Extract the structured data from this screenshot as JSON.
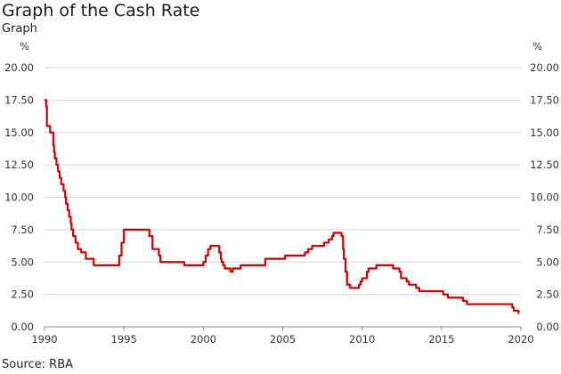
{
  "page": {
    "title": "Graph of the Cash Rate",
    "subtitle": "Graph",
    "source": "Source: RBA"
  },
  "chart_data": {
    "type": "line",
    "title": "Graph of the Cash Rate",
    "xlabel": "",
    "ylabel": "%",
    "ylabel_right": "%",
    "xlim": [
      1990,
      2020
    ],
    "ylim": [
      0,
      20
    ],
    "x_ticks": [
      "1990",
      "1995",
      "2000",
      "2005",
      "2010",
      "2015",
      "2020"
    ],
    "y_ticks": [
      "0.00",
      "2.50",
      "5.00",
      "7.50",
      "10.00",
      "12.50",
      "15.00",
      "17.50",
      "20.00"
    ],
    "grid": "horizontal",
    "line_color": "#cc0000",
    "series": [
      {
        "x": [
          1990.0,
          1990.1,
          1990.15,
          1990.3,
          1990.35,
          1990.55,
          1990.6,
          1990.65,
          1990.75,
          1990.85,
          1990.95,
          1991.05,
          1991.2,
          1991.3,
          1991.35,
          1991.45,
          1991.55,
          1991.65,
          1991.7,
          1991.8,
          1991.95,
          1992.1,
          1992.3,
          1992.4,
          1992.6,
          1992.8,
          1993.1,
          1993.3,
          1993.55,
          1994.1,
          1994.7,
          1994.85,
          1995.0,
          1995.1,
          1996.5,
          1996.6,
          1996.8,
          1996.9,
          1997.2,
          1997.3,
          1997.5,
          1997.6,
          1998.8,
          1999.85,
          2000.0,
          2000.15,
          2000.3,
          2000.45,
          2000.6,
          2001.0,
          2001.1,
          2001.15,
          2001.25,
          2001.35,
          2001.7,
          2001.85,
          2002.35,
          2002.55,
          2003.9,
          2005.15,
          2006.4,
          2006.6,
          2006.85,
          2007.6,
          2007.9,
          2008.1,
          2008.2,
          2008.3,
          2008.7,
          2008.8,
          2008.85,
          2008.95,
          2009.05,
          2009.25,
          2009.8,
          2009.9,
          2010.0,
          2010.3,
          2010.4,
          2010.9,
          2011.85,
          2011.95,
          2012.35,
          2012.45,
          2012.8,
          2012.95,
          2013.4,
          2013.6,
          2015.1,
          2015.4,
          2016.35,
          2016.6,
          2019.45,
          2019.55,
          2019.85
        ],
        "y": [
          17.5,
          17.0,
          15.5,
          15.5,
          15.0,
          14.0,
          13.5,
          13.0,
          12.5,
          12.0,
          11.5,
          11.0,
          10.5,
          10.0,
          9.5,
          9.0,
          8.5,
          8.0,
          7.5,
          7.0,
          6.5,
          6.0,
          5.75,
          5.75,
          5.25,
          5.25,
          4.75,
          4.75,
          4.75,
          4.75,
          5.5,
          6.5,
          7.5,
          7.5,
          7.5,
          7.0,
          6.0,
          6.0,
          5.5,
          5.0,
          5.0,
          5.0,
          4.75,
          4.75,
          5.0,
          5.5,
          6.0,
          6.25,
          6.25,
          5.75,
          5.25,
          5.0,
          4.75,
          4.5,
          4.25,
          4.5,
          4.75,
          4.75,
          5.25,
          5.5,
          5.75,
          6.0,
          6.25,
          6.5,
          6.75,
          7.0,
          7.25,
          7.25,
          7.0,
          6.0,
          5.25,
          4.25,
          3.25,
          3.0,
          3.25,
          3.5,
          3.75,
          4.25,
          4.5,
          4.75,
          4.75,
          4.5,
          4.25,
          3.75,
          3.5,
          3.25,
          3.0,
          2.75,
          2.5,
          2.25,
          2.0,
          1.75,
          1.5,
          1.25,
          1.0
        ]
      }
    ]
  }
}
